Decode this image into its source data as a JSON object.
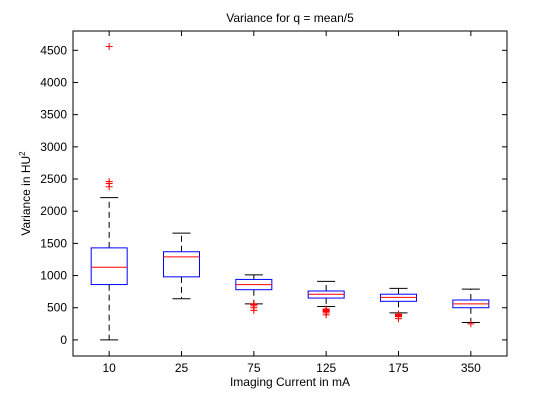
{
  "chart_data": {
    "type": "boxplot",
    "title": "Variance for q = mean/5",
    "xlabel": "Imaging Current in mA",
    "ylabel_main": "Variance in HU",
    "ylabel_sup": "2",
    "ylim": [
      -250,
      4800
    ],
    "yticks": [
      0,
      500,
      1000,
      1500,
      2000,
      2500,
      3000,
      3500,
      4000,
      4500
    ],
    "categories": [
      "10",
      "25",
      "75",
      "125",
      "175",
      "350"
    ],
    "boxes": [
      {
        "whisker_low": 0,
        "q1": 860,
        "median": 1130,
        "q3": 1430,
        "whisker_high": 2210,
        "outliers": [
          2380,
          2430,
          2460,
          4560
        ]
      },
      {
        "whisker_low": 640,
        "q1": 980,
        "median": 1290,
        "q3": 1370,
        "whisker_high": 1660,
        "outliers": []
      },
      {
        "whisker_low": 560,
        "q1": 780,
        "median": 860,
        "q3": 940,
        "whisker_high": 1010,
        "outliers": [
          460,
          500,
          530,
          550,
          560
        ]
      },
      {
        "whisker_low": 520,
        "q1": 650,
        "median": 710,
        "q3": 760,
        "whisker_high": 910,
        "outliers": [
          390,
          420,
          440,
          450,
          460,
          470,
          480
        ]
      },
      {
        "whisker_low": 420,
        "q1": 600,
        "median": 660,
        "q3": 710,
        "whisker_high": 800,
        "outliers": [
          330,
          360,
          370,
          380,
          390,
          400
        ]
      },
      {
        "whisker_low": 270,
        "q1": 500,
        "median": 560,
        "q3": 620,
        "whisker_high": 790,
        "outliers": [
          250
        ]
      }
    ],
    "colors": {
      "box": "#0000ff",
      "median": "#ff0000",
      "whisker": "#000000",
      "outlier": "#ff0000"
    },
    "grid": false
  }
}
